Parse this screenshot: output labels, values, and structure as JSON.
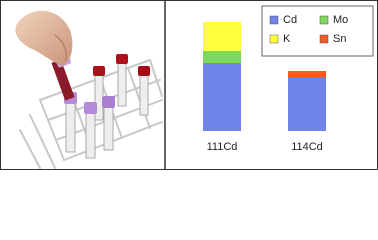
{
  "chart_data": {
    "type": "stacked-bar",
    "categories": [
      "111Cd",
      "114Cd"
    ],
    "series": [
      {
        "name": "Cd",
        "color": "#6f84ea",
        "values": [
          68,
          53
        ]
      },
      {
        "name": "Mo",
        "color": "#7ed85a",
        "values": [
          12,
          0
        ]
      },
      {
        "name": "K",
        "color": "#ffff40",
        "values": [
          29,
          0
        ]
      },
      {
        "name": "Sn",
        "color": "#f25a26",
        "values": [
          0,
          7
        ]
      }
    ]
  }
}
